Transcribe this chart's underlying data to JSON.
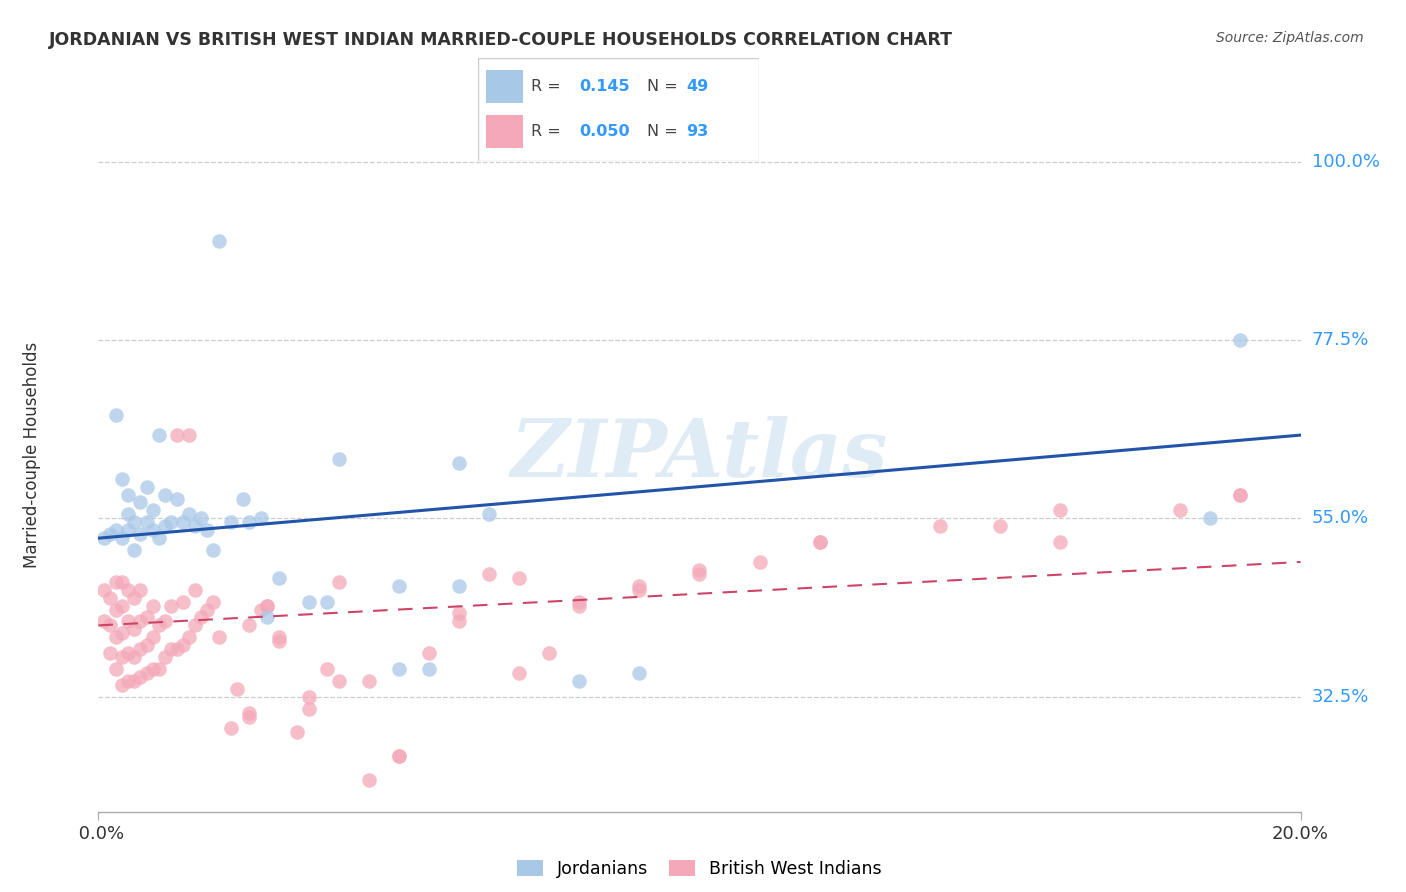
{
  "title": "JORDANIAN VS BRITISH WEST INDIAN MARRIED-COUPLE HOUSEHOLDS CORRELATION CHART",
  "source": "Source: ZipAtlas.com",
  "ylabel": "Married-couple Households",
  "ytick_labels": [
    "32.5%",
    "55.0%",
    "77.5%",
    "100.0%"
  ],
  "ytick_vals": [
    0.325,
    0.55,
    0.775,
    1.0
  ],
  "xmin": 0.0,
  "xmax": 0.2,
  "ymin": 0.18,
  "ymax": 1.08,
  "blue_color": "#a8c8e8",
  "pink_color": "#f4a8b8",
  "blue_line_color": "#2255aa",
  "pink_line_color": "#cc4466",
  "watermark": "ZIPAtlas",
  "legend_R_blue": "0.145",
  "legend_N_blue": "49",
  "legend_R_pink": "0.050",
  "legend_N_pink": "93",
  "label_blue": "Jordanians",
  "label_pink": "British West Indians",
  "blue_line_x0": 0.0,
  "blue_line_y0": 0.525,
  "blue_line_x1": 0.2,
  "blue_line_y1": 0.655,
  "pink_line_x0": 0.0,
  "pink_line_y0": 0.415,
  "pink_line_x1": 0.2,
  "pink_line_y1": 0.495,
  "blue_scatter_x": [
    0.001,
    0.002,
    0.003,
    0.003,
    0.004,
    0.004,
    0.005,
    0.005,
    0.005,
    0.006,
    0.006,
    0.007,
    0.007,
    0.008,
    0.008,
    0.009,
    0.009,
    0.01,
    0.01,
    0.011,
    0.011,
    0.012,
    0.013,
    0.014,
    0.015,
    0.016,
    0.017,
    0.018,
    0.019,
    0.02,
    0.022,
    0.024,
    0.025,
    0.027,
    0.028,
    0.03,
    0.035,
    0.038,
    0.04,
    0.05,
    0.055,
    0.06,
    0.065,
    0.08,
    0.09,
    0.185,
    0.19,
    0.05,
    0.06
  ],
  "blue_scatter_y": [
    0.525,
    0.53,
    0.535,
    0.68,
    0.525,
    0.6,
    0.535,
    0.555,
    0.58,
    0.51,
    0.545,
    0.53,
    0.57,
    0.545,
    0.59,
    0.56,
    0.535,
    0.525,
    0.655,
    0.54,
    0.58,
    0.545,
    0.575,
    0.545,
    0.555,
    0.54,
    0.55,
    0.535,
    0.51,
    0.9,
    0.545,
    0.575,
    0.545,
    0.55,
    0.425,
    0.475,
    0.445,
    0.445,
    0.625,
    0.36,
    0.36,
    0.62,
    0.555,
    0.345,
    0.355,
    0.55,
    0.775,
    0.465,
    0.465
  ],
  "pink_scatter_x": [
    0.001,
    0.001,
    0.002,
    0.002,
    0.002,
    0.003,
    0.003,
    0.003,
    0.003,
    0.004,
    0.004,
    0.004,
    0.004,
    0.004,
    0.005,
    0.005,
    0.005,
    0.005,
    0.006,
    0.006,
    0.006,
    0.006,
    0.007,
    0.007,
    0.007,
    0.007,
    0.008,
    0.008,
    0.008,
    0.009,
    0.009,
    0.009,
    0.01,
    0.01,
    0.011,
    0.011,
    0.012,
    0.012,
    0.013,
    0.013,
    0.014,
    0.014,
    0.015,
    0.015,
    0.016,
    0.016,
    0.017,
    0.018,
    0.019,
    0.02,
    0.022,
    0.023,
    0.025,
    0.025,
    0.027,
    0.028,
    0.03,
    0.033,
    0.035,
    0.038,
    0.04,
    0.045,
    0.05,
    0.055,
    0.06,
    0.065,
    0.07,
    0.075,
    0.08,
    0.09,
    0.1,
    0.11,
    0.12,
    0.15,
    0.16,
    0.18,
    0.19,
    0.025,
    0.028,
    0.03,
    0.035,
    0.04,
    0.045,
    0.05,
    0.06,
    0.07,
    0.08,
    0.09,
    0.1,
    0.12,
    0.14,
    0.16,
    0.19
  ],
  "pink_scatter_y": [
    0.42,
    0.46,
    0.38,
    0.415,
    0.45,
    0.36,
    0.4,
    0.435,
    0.47,
    0.34,
    0.375,
    0.405,
    0.44,
    0.47,
    0.345,
    0.38,
    0.42,
    0.46,
    0.345,
    0.375,
    0.41,
    0.45,
    0.35,
    0.385,
    0.42,
    0.46,
    0.355,
    0.39,
    0.425,
    0.36,
    0.4,
    0.44,
    0.36,
    0.415,
    0.375,
    0.42,
    0.385,
    0.44,
    0.385,
    0.655,
    0.39,
    0.445,
    0.4,
    0.655,
    0.415,
    0.46,
    0.425,
    0.435,
    0.445,
    0.4,
    0.285,
    0.335,
    0.415,
    0.305,
    0.435,
    0.44,
    0.4,
    0.28,
    0.31,
    0.36,
    0.345,
    0.22,
    0.25,
    0.38,
    0.42,
    0.48,
    0.355,
    0.38,
    0.44,
    0.46,
    0.48,
    0.495,
    0.52,
    0.54,
    0.52,
    0.56,
    0.58,
    0.3,
    0.44,
    0.395,
    0.325,
    0.47,
    0.345,
    0.25,
    0.43,
    0.475,
    0.445,
    0.465,
    0.485,
    0.52,
    0.54,
    0.56,
    0.58
  ]
}
